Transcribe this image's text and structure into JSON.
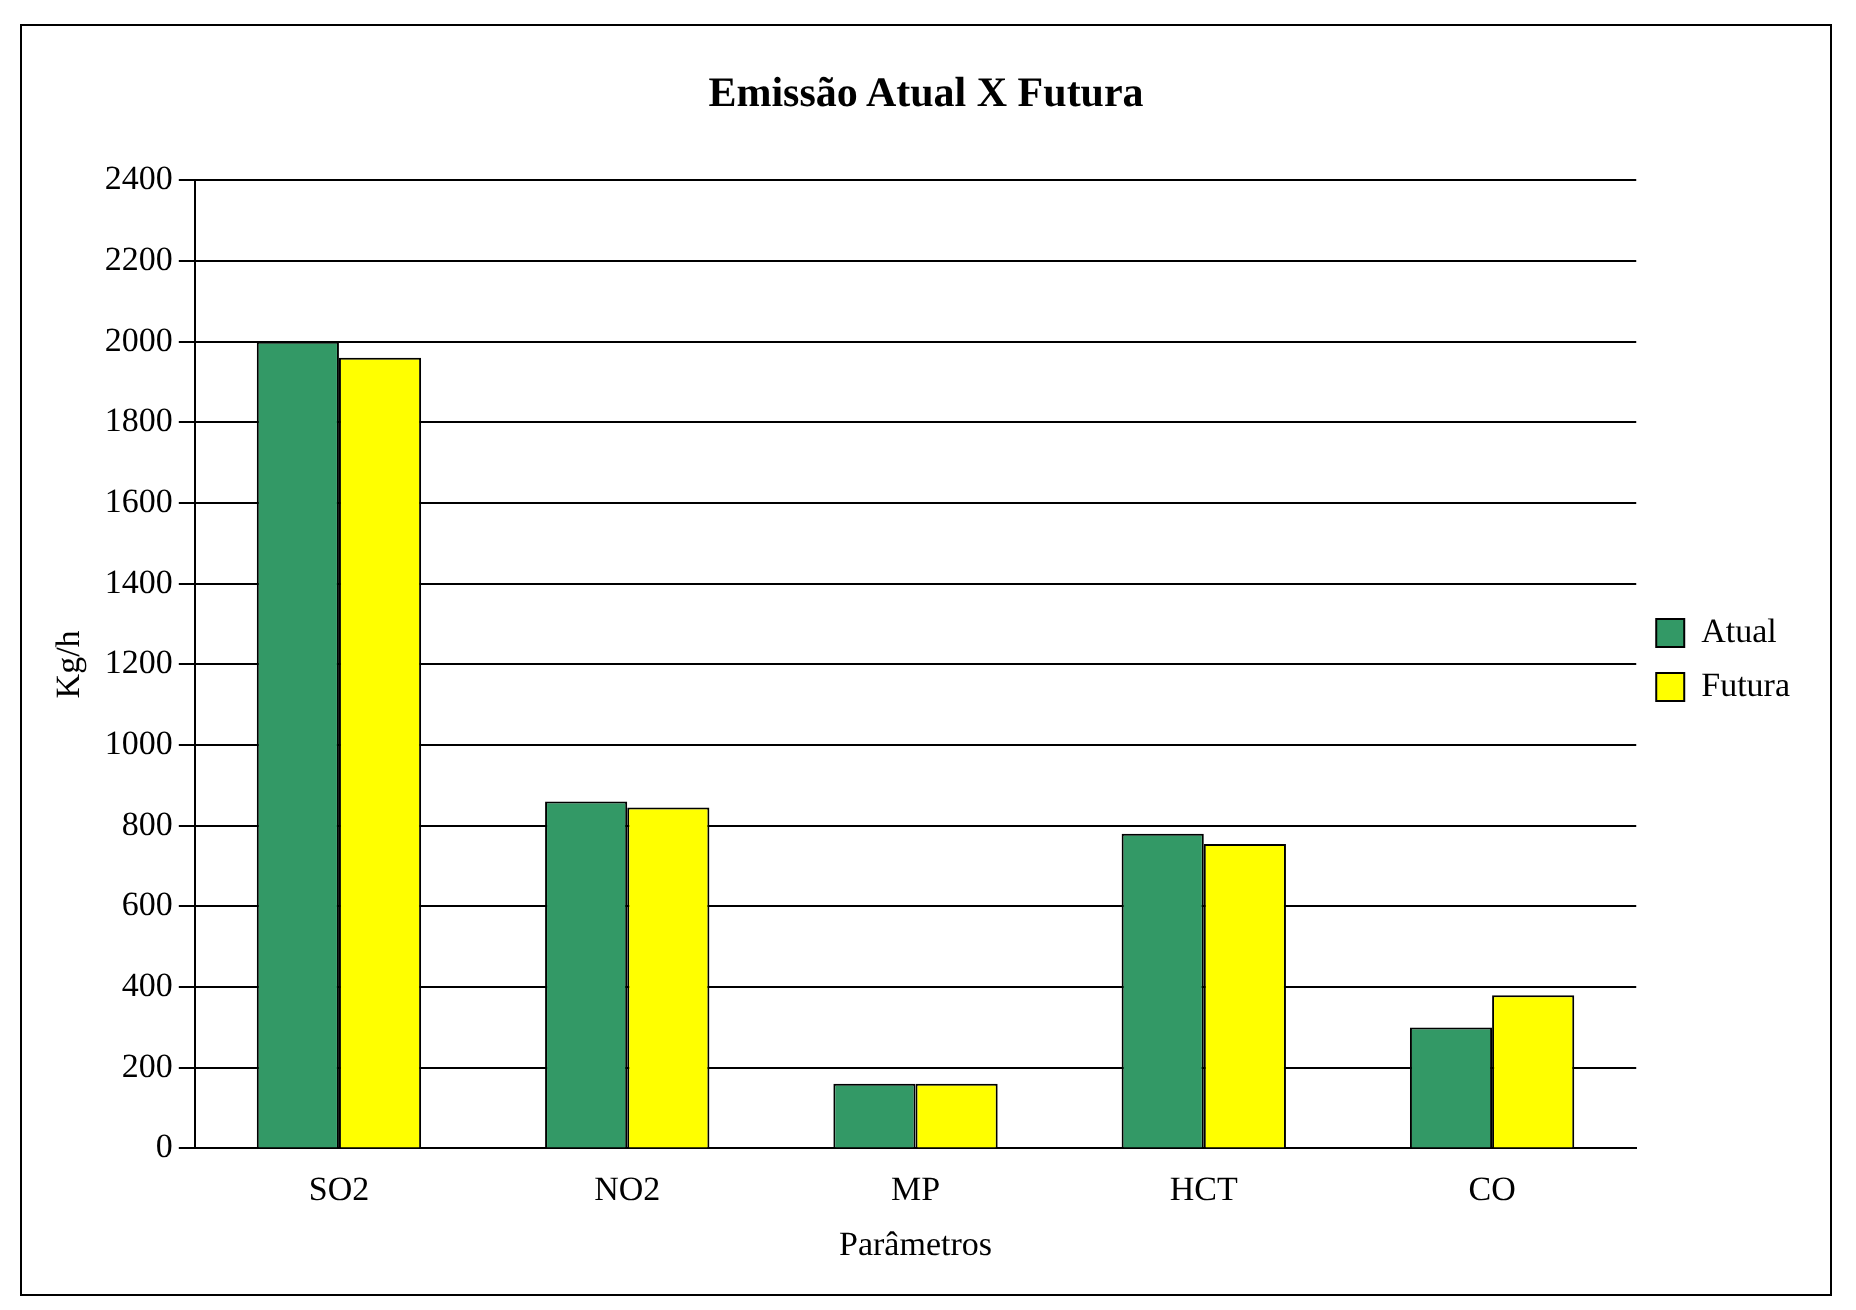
{
  "chart_data": {
    "type": "bar",
    "title": "Emissão Atual X Futura",
    "xlabel": "Parâmetros",
    "ylabel": "Kg/h",
    "categories": [
      "SO2",
      "NO2",
      "MP",
      "HCT",
      "CO"
    ],
    "series": [
      {
        "name": "Atual",
        "color": "#339966",
        "values": [
          2000,
          860,
          160,
          780,
          300
        ]
      },
      {
        "name": "Futura",
        "color": "#ffff00",
        "values": [
          1960,
          845,
          160,
          755,
          380
        ]
      }
    ],
    "ylim": [
      0,
      2400
    ],
    "yticks": [
      0,
      200,
      400,
      600,
      800,
      1000,
      1200,
      1400,
      1600,
      1800,
      2000,
      2200,
      2400
    ],
    "grid": "y",
    "legend": "right"
  }
}
